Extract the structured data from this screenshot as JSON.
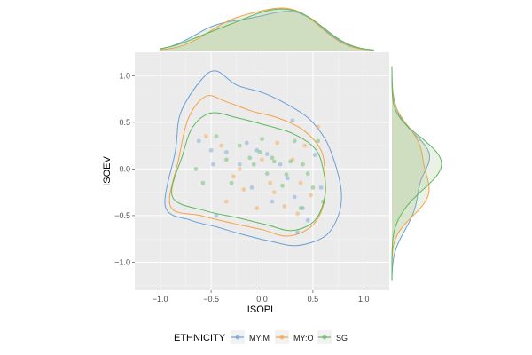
{
  "chart_data": {
    "type": "scatter",
    "xlabel": "ISOPL",
    "ylabel": "ISOEV",
    "xlim": [
      -1.25,
      1.25
    ],
    "ylim": [
      -1.3,
      1.25
    ],
    "x_ticks": [
      -1.0,
      -0.5,
      0.0,
      0.5,
      1.0
    ],
    "y_ticks": [
      -1.0,
      -0.5,
      0.0,
      0.5,
      1.0
    ],
    "x_tick_labels": [
      "−1.0",
      "−0.5",
      "0.0",
      "0.5",
      "1.0"
    ],
    "y_tick_labels": [
      "−1.0",
      "−0.5",
      "0.0",
      "0.5",
      "1.0"
    ],
    "grid": true,
    "marginal_densities": true,
    "legend": {
      "title": "ETHNICITY",
      "position": "bottom",
      "entries": [
        "MY:M",
        "MY:O",
        "SG"
      ]
    },
    "series": [
      {
        "name": "MY:M",
        "color": "#6a9fd6",
        "points": [
          [
            -0.62,
            0.3
          ],
          [
            -0.5,
            0.2
          ],
          [
            -0.48,
            0.05
          ],
          [
            -0.35,
            0.18
          ],
          [
            -0.22,
            0.05
          ],
          [
            -0.15,
            0.28
          ],
          [
            -0.05,
            0.2
          ],
          [
            0.05,
            0.16
          ],
          [
            0.18,
            0.05
          ],
          [
            0.25,
            -0.1
          ],
          [
            0.32,
            -0.3
          ],
          [
            0.4,
            -0.42
          ],
          [
            0.45,
            -0.55
          ],
          [
            0.52,
            0.15
          ],
          [
            0.58,
            -0.2
          ],
          [
            0.3,
            0.52
          ],
          [
            -0.1,
            -0.2
          ],
          [
            0.1,
            -0.35
          ],
          [
            -0.45,
            -0.5
          ],
          [
            0.35,
            -0.68
          ]
        ],
        "contours": [
          [
            [
              -0.95,
              -0.4
            ],
            [
              -0.85,
              0.2
            ],
            [
              -0.8,
              0.6
            ],
            [
              -0.6,
              0.95
            ],
            [
              -0.45,
              1.05
            ],
            [
              -0.25,
              0.9
            ],
            [
              0.0,
              0.82
            ],
            [
              0.2,
              0.72
            ],
            [
              0.45,
              0.55
            ],
            [
              0.62,
              0.32
            ],
            [
              0.72,
              0.05
            ],
            [
              0.78,
              -0.25
            ],
            [
              0.75,
              -0.5
            ],
            [
              0.62,
              -0.72
            ],
            [
              0.35,
              -0.82
            ],
            [
              0.1,
              -0.78
            ],
            [
              -0.2,
              -0.7
            ],
            [
              -0.45,
              -0.62
            ],
            [
              -0.7,
              -0.55
            ],
            [
              -0.95,
              -0.4
            ]
          ]
        ]
      },
      {
        "name": "MY:O",
        "color": "#f5a142",
        "points": [
          [
            -0.55,
            0.35
          ],
          [
            -0.4,
            0.25
          ],
          [
            -0.28,
            -0.08
          ],
          [
            -0.18,
            -0.22
          ],
          [
            0.0,
            0.1
          ],
          [
            0.08,
            -0.15
          ],
          [
            0.15,
            0.28
          ],
          [
            0.22,
            -0.4
          ],
          [
            0.35,
            -0.48
          ],
          [
            0.42,
            0.25
          ],
          [
            0.48,
            -0.28
          ],
          [
            0.55,
            0.45
          ],
          [
            -0.35,
            -0.35
          ],
          [
            -0.05,
            -0.42
          ],
          [
            0.3,
            0.1
          ],
          [
            0.12,
            -0.25
          ],
          [
            0.38,
            -0.15
          ],
          [
            -0.22,
            0.0
          ]
        ],
        "contours": [
          [
            [
              -0.9,
              -0.4
            ],
            [
              -0.82,
              0.1
            ],
            [
              -0.72,
              0.55
            ],
            [
              -0.55,
              0.78
            ],
            [
              -0.35,
              0.72
            ],
            [
              -0.1,
              0.62
            ],
            [
              0.15,
              0.55
            ],
            [
              0.4,
              0.42
            ],
            [
              0.58,
              0.2
            ],
            [
              0.62,
              -0.1
            ],
            [
              0.6,
              -0.4
            ],
            [
              0.48,
              -0.62
            ],
            [
              0.25,
              -0.72
            ],
            [
              0.0,
              -0.65
            ],
            [
              -0.3,
              -0.58
            ],
            [
              -0.6,
              -0.5
            ],
            [
              -0.9,
              -0.4
            ]
          ]
        ]
      },
      {
        "name": "SG",
        "color": "#5cb85c",
        "points": [
          [
            -0.65,
            0.0
          ],
          [
            -0.58,
            -0.15
          ],
          [
            -0.45,
            0.35
          ],
          [
            -0.3,
            -0.15
          ],
          [
            -0.22,
            0.25
          ],
          [
            -0.08,
            0.05
          ],
          [
            0.0,
            0.32
          ],
          [
            0.05,
            -0.05
          ],
          [
            0.12,
            0.08
          ],
          [
            0.2,
            -0.18
          ],
          [
            0.28,
            0.08
          ],
          [
            0.32,
            0.3
          ],
          [
            0.38,
            -0.42
          ],
          [
            0.45,
            -0.05
          ],
          [
            0.5,
            -0.2
          ],
          [
            0.55,
            0.3
          ],
          [
            0.6,
            -0.35
          ],
          [
            -0.12,
            0.12
          ],
          [
            0.1,
            0.12
          ],
          [
            -0.02,
            0.18
          ],
          [
            0.24,
            -0.06
          ],
          [
            -0.35,
            0.1
          ],
          [
            0.4,
            0.05
          ]
        ],
        "contours": [
          [
            [
              -0.88,
              -0.3
            ],
            [
              -0.78,
              0.15
            ],
            [
              -0.68,
              0.45
            ],
            [
              -0.5,
              0.6
            ],
            [
              -0.25,
              0.55
            ],
            [
              0.0,
              0.48
            ],
            [
              0.3,
              0.38
            ],
            [
              0.52,
              0.22
            ],
            [
              0.6,
              0.0
            ],
            [
              0.62,
              -0.28
            ],
            [
              0.52,
              -0.55
            ],
            [
              0.3,
              -0.66
            ],
            [
              0.05,
              -0.6
            ],
            [
              -0.25,
              -0.52
            ],
            [
              -0.55,
              -0.45
            ],
            [
              -0.88,
              -0.3
            ]
          ]
        ]
      }
    ]
  }
}
